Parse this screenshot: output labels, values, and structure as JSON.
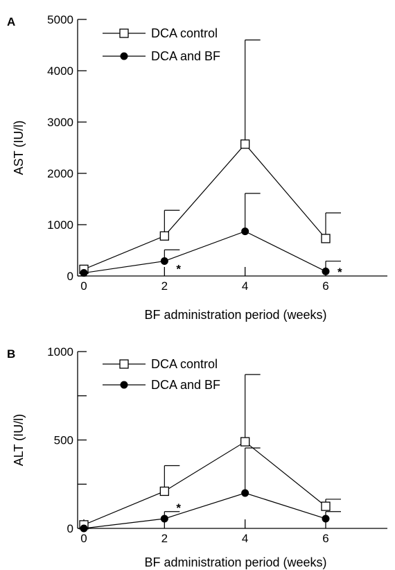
{
  "chart_data": [
    {
      "type": "line",
      "panel_label": "A",
      "xlabel": "BF administration period (weeks)",
      "ylabel": "AST (IU/l)",
      "x_ticks": [
        "0",
        "2",
        "4",
        "6"
      ],
      "y_ticks": [
        "0",
        "1000",
        "2000",
        "3000",
        "4000",
        "5000"
      ],
      "xlim": [
        0,
        7.5
      ],
      "ylim": [
        0,
        5000
      ],
      "legend_position": "top-left",
      "series": [
        {
          "name": "DCA control",
          "marker": "open-square",
          "x": [
            0,
            2,
            4,
            6
          ],
          "y": [
            130,
            780,
            2570,
            730
          ],
          "error_upper": [
            130,
            1280,
            4600,
            1230
          ]
        },
        {
          "name": "DCA and BF",
          "marker": "filled-circle",
          "x": [
            0,
            2,
            4,
            6
          ],
          "y": [
            60,
            290,
            870,
            90
          ],
          "error_upper": [
            60,
            510,
            1610,
            290
          ]
        }
      ],
      "annotations": [
        {
          "text": "*",
          "x": 2.35,
          "y": 170
        },
        {
          "text": "*",
          "x": 6.35,
          "y": 110
        }
      ]
    },
    {
      "type": "line",
      "panel_label": "B",
      "xlabel": "BF administration period (weeks)",
      "ylabel": "ALT (IU/l)",
      "x_ticks": [
        "0",
        "2",
        "4",
        "6"
      ],
      "y_ticks": [
        "0",
        "500",
        "1000"
      ],
      "y_minor_ticks": [
        250,
        750
      ],
      "xlim": [
        0,
        7.5
      ],
      "ylim": [
        0,
        1000
      ],
      "legend_position": "top-left",
      "series": [
        {
          "name": "DCA control",
          "marker": "open-square",
          "x": [
            0,
            2,
            4,
            6
          ],
          "y": [
            20,
            210,
            490,
            125
          ],
          "error_upper": [
            20,
            355,
            870,
            165
          ]
        },
        {
          "name": "DCA and BF",
          "marker": "filled-circle",
          "x": [
            0,
            2,
            4,
            6
          ],
          "y": [
            0,
            55,
            200,
            55
          ],
          "error_upper": [
            0,
            95,
            455,
            95
          ]
        }
      ],
      "annotations": [
        {
          "text": "*",
          "x": 2.35,
          "y": 125
        }
      ]
    }
  ]
}
